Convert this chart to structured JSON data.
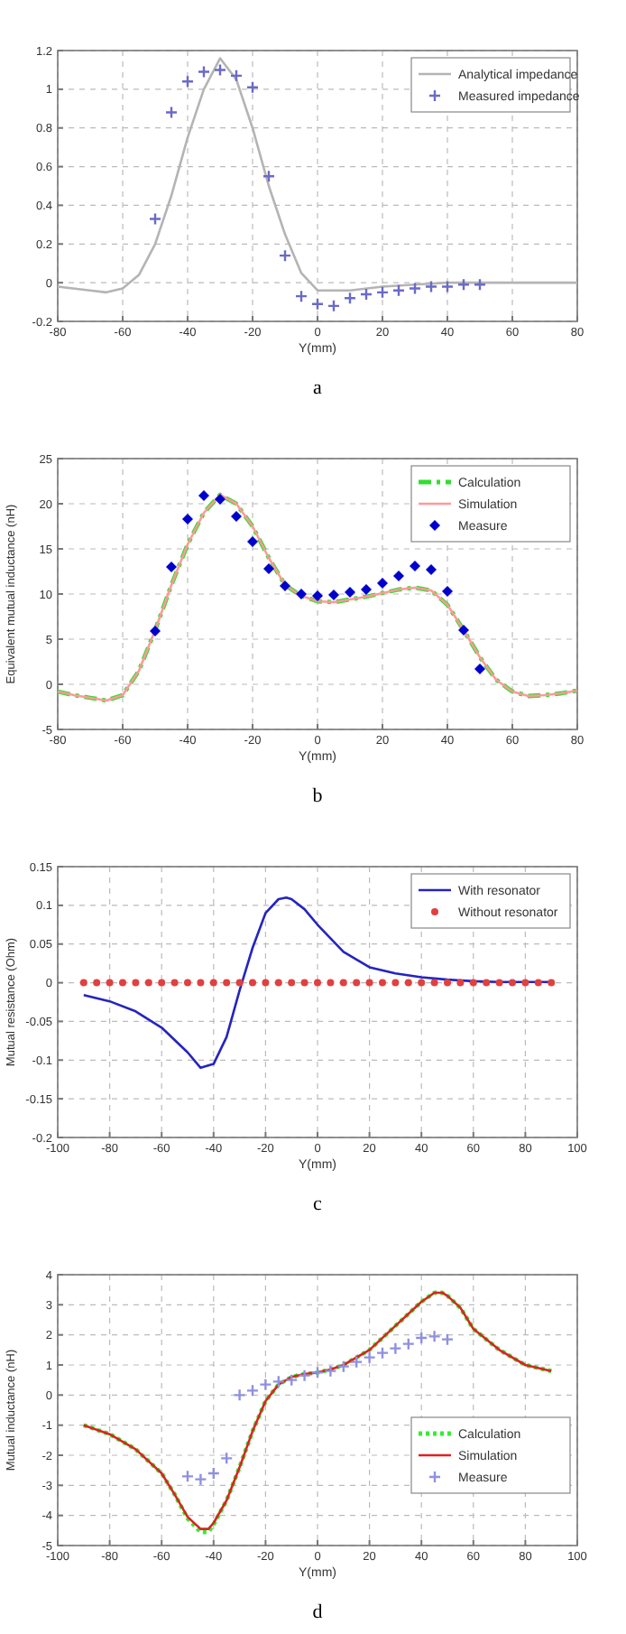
{
  "chart_data": [
    {
      "type": "line",
      "xlabel": "Y(mm)",
      "annotations": [
        "a"
      ],
      "xlim": [
        -80,
        80
      ],
      "xticks": [
        -80,
        -60,
        -40,
        -20,
        0,
        20,
        40,
        60,
        80
      ],
      "ylim": [
        -0.2,
        1.2
      ],
      "yticks": [
        -0.2,
        0,
        0.2,
        0.4,
        0.6,
        0.8,
        1,
        1.2
      ],
      "grid": true,
      "legend": "top right",
      "series": [
        {
          "name": "Analytical impedance",
          "type": "line",
          "color": "#b4b4b4",
          "line_style": "solid",
          "marker": "none",
          "x": [
            -80,
            -70,
            -65,
            -60,
            -55,
            -50,
            -45,
            -40,
            -35,
            -30,
            -25,
            -20,
            -15,
            -10,
            -5,
            0,
            5,
            10,
            20,
            30,
            40,
            50,
            60,
            80
          ],
          "values": [
            -0.02,
            -0.04,
            -0.05,
            -0.03,
            0.04,
            0.2,
            0.45,
            0.75,
            1.0,
            1.16,
            1.05,
            0.8,
            0.5,
            0.25,
            0.05,
            -0.04,
            -0.04,
            -0.04,
            -0.02,
            -0.01,
            0,
            0,
            0,
            0
          ]
        },
        {
          "name": "Measured impedance",
          "type": "scatter",
          "color": "#6a6ac8",
          "marker": "cross",
          "x": [
            -50,
            -45,
            -40,
            -35,
            -30,
            -25,
            -20,
            -15,
            -10,
            -5,
            0,
            5,
            10,
            15,
            20,
            25,
            30,
            35,
            40,
            45,
            50
          ],
          "values": [
            0.33,
            0.88,
            1.04,
            1.09,
            1.1,
            1.07,
            1.01,
            0.55,
            0.14,
            -0.07,
            -0.11,
            -0.12,
            -0.08,
            -0.06,
            -0.05,
            -0.04,
            -0.03,
            -0.02,
            -0.02,
            -0.01,
            -0.01
          ]
        }
      ]
    },
    {
      "type": "line",
      "xlabel": "Y(mm)",
      "ylabel": "Equivalent mutual inductance (nH)",
      "annotations": [
        "b"
      ],
      "xlim": [
        -80,
        80
      ],
      "xticks": [
        -80,
        -60,
        -40,
        -20,
        0,
        20,
        40,
        60,
        80
      ],
      "ylim": [
        -5,
        25
      ],
      "yticks": [
        -5,
        0,
        5,
        10,
        15,
        20,
        25
      ],
      "grid": true,
      "legend": "top right",
      "series": [
        {
          "name": "Calculation",
          "type": "line",
          "color": "#33dd33",
          "line_style": "dashed",
          "marker": "none",
          "x": [
            -80,
            -75,
            -70,
            -65,
            -60,
            -55,
            -50,
            -45,
            -40,
            -35,
            -30,
            -25,
            -20,
            -15,
            -10,
            -5,
            0,
            5,
            10,
            15,
            20,
            25,
            30,
            35,
            40,
            45,
            50,
            55,
            60,
            65,
            70,
            75,
            80
          ],
          "values": [
            -0.8,
            -1.2,
            -1.5,
            -1.8,
            -1.2,
            1.5,
            6,
            11,
            15.5,
            19,
            21,
            20,
            17.5,
            14,
            11,
            9.8,
            9.2,
            9.1,
            9.4,
            9.7,
            10.1,
            10.5,
            10.7,
            10.4,
            8.8,
            6,
            3,
            0.5,
            -0.8,
            -1.3,
            -1.2,
            -1,
            -0.7
          ]
        },
        {
          "name": "Simulation",
          "type": "line",
          "color": "#ff9999",
          "line_style": "solid",
          "marker": "none",
          "x": [
            -80,
            -75,
            -70,
            -65,
            -60,
            -55,
            -50,
            -45,
            -40,
            -35,
            -30,
            -25,
            -20,
            -15,
            -10,
            -5,
            0,
            5,
            10,
            15,
            20,
            25,
            30,
            35,
            40,
            45,
            50,
            55,
            60,
            65,
            70,
            75,
            80
          ],
          "values": [
            -0.8,
            -1.2,
            -1.5,
            -1.8,
            -1.2,
            1.5,
            6,
            11,
            15.5,
            19,
            21,
            20,
            17.5,
            14,
            11,
            9.8,
            9.2,
            9.1,
            9.4,
            9.7,
            10.1,
            10.5,
            10.7,
            10.4,
            8.8,
            6,
            3,
            0.5,
            -0.8,
            -1.3,
            -1.2,
            -1,
            -0.7
          ]
        },
        {
          "name": "Measure",
          "type": "scatter",
          "color": "#0000cc",
          "marker": "diamond",
          "x": [
            -50,
            -45,
            -40,
            -35,
            -30,
            -25,
            -20,
            -15,
            -10,
            -5,
            0,
            5,
            10,
            15,
            20,
            25,
            30,
            35,
            40,
            45,
            50
          ],
          "values": [
            5.9,
            13,
            18.3,
            20.9,
            20.5,
            18.6,
            15.8,
            12.8,
            10.9,
            10,
            9.8,
            9.9,
            10.2,
            10.5,
            11.2,
            12,
            13.1,
            12.7,
            10.3,
            6,
            1.7
          ]
        }
      ]
    },
    {
      "type": "line",
      "xlabel": "Y(mm)",
      "ylabel": "Mutual resistance (Ohm)",
      "annotations": [
        "c"
      ],
      "xlim": [
        -100,
        100
      ],
      "xticks": [
        -100,
        -80,
        -60,
        -40,
        -20,
        0,
        20,
        40,
        60,
        80,
        100
      ],
      "ylim": [
        -0.2,
        0.15
      ],
      "yticks": [
        -0.2,
        -0.15,
        -0.1,
        -0.05,
        0,
        0.05,
        0.1,
        0.15
      ],
      "grid": true,
      "legend": "top right",
      "series": [
        {
          "name": "With resonator",
          "type": "line",
          "color": "#2424c0",
          "line_style": "solid",
          "marker": "none",
          "x": [
            -90,
            -80,
            -70,
            -60,
            -50,
            -45,
            -40,
            -35,
            -30,
            -25,
            -20,
            -15,
            -12,
            -10,
            -5,
            0,
            10,
            20,
            30,
            40,
            50,
            60,
            70,
            80,
            90
          ],
          "values": [
            -0.016,
            -0.024,
            -0.037,
            -0.058,
            -0.09,
            -0.11,
            -0.105,
            -0.07,
            -0.01,
            0.045,
            0.09,
            0.108,
            0.11,
            0.108,
            0.095,
            0.075,
            0.04,
            0.02,
            0.012,
            0.007,
            0.004,
            0.002,
            0.001,
            0.001,
            0.001
          ]
        },
        {
          "name": "Without resonator",
          "type": "scatter",
          "color": "#e04040",
          "marker": "circle",
          "x": [
            -90,
            -85,
            -80,
            -75,
            -70,
            -65,
            -60,
            -55,
            -50,
            -45,
            -40,
            -35,
            -30,
            -25,
            -20,
            -15,
            -10,
            -5,
            0,
            5,
            10,
            15,
            20,
            25,
            30,
            35,
            40,
            45,
            50,
            55,
            60,
            65,
            70,
            75,
            80,
            85,
            90
          ],
          "values": [
            0,
            0,
            0,
            0,
            0,
            0,
            0,
            0,
            0,
            0,
            0,
            0,
            0,
            0,
            0,
            0,
            0,
            0,
            0,
            0,
            0,
            0,
            0,
            0,
            0,
            0,
            0,
            0,
            0,
            0,
            0,
            0,
            0,
            0,
            0,
            0,
            0
          ]
        }
      ]
    },
    {
      "type": "line",
      "xlabel": "Y(mm)",
      "ylabel": "Mutual inductance (nH)",
      "annotations": [
        "d"
      ],
      "xlim": [
        -100,
        100
      ],
      "xticks": [
        -100,
        -80,
        -60,
        -40,
        -20,
        0,
        20,
        40,
        60,
        80,
        100
      ],
      "ylim": [
        -5,
        4
      ],
      "yticks": [
        -5,
        -4,
        -3,
        -2,
        -1,
        0,
        1,
        2,
        3,
        4
      ],
      "grid": true,
      "legend": "right",
      "series": [
        {
          "name": "Calculation",
          "type": "line",
          "color": "#33ee33",
          "line_style": "dotted",
          "marker": "none",
          "x": [
            -90,
            -80,
            -70,
            -60,
            -55,
            -50,
            -45,
            -42,
            -40,
            -35,
            -30,
            -25,
            -20,
            -15,
            -10,
            -5,
            0,
            5,
            10,
            20,
            30,
            40,
            45,
            48,
            50,
            55,
            60,
            70,
            80,
            90
          ],
          "values": [
            -1,
            -1.3,
            -1.8,
            -2.6,
            -3.3,
            -4.1,
            -4.55,
            -4.55,
            -4.3,
            -3.5,
            -2.4,
            -1.2,
            -0.2,
            0.35,
            0.6,
            0.7,
            0.75,
            0.85,
            1,
            1.5,
            2.3,
            3.1,
            3.4,
            3.4,
            3.3,
            2.9,
            2.2,
            1.5,
            1,
            0.8
          ]
        },
        {
          "name": "Simulation",
          "type": "line",
          "color": "#dd2222",
          "line_style": "solid",
          "marker": "none",
          "x": [
            -90,
            -80,
            -70,
            -60,
            -55,
            -50,
            -45,
            -42,
            -40,
            -35,
            -30,
            -25,
            -20,
            -15,
            -10,
            -5,
            0,
            5,
            10,
            20,
            30,
            40,
            45,
            48,
            50,
            55,
            60,
            70,
            80,
            90
          ],
          "values": [
            -1,
            -1.3,
            -1.8,
            -2.6,
            -3.3,
            -4.05,
            -4.45,
            -4.45,
            -4.25,
            -3.5,
            -2.4,
            -1.2,
            -0.2,
            0.35,
            0.6,
            0.7,
            0.75,
            0.85,
            1,
            1.5,
            2.3,
            3.1,
            3.4,
            3.4,
            3.3,
            2.9,
            2.2,
            1.5,
            1,
            0.8
          ]
        },
        {
          "name": "Measure",
          "type": "scatter",
          "color": "#9090e0",
          "marker": "cross",
          "x": [
            -50,
            -45,
            -40,
            -35,
            -30,
            -25,
            -20,
            -15,
            -10,
            -5,
            0,
            5,
            10,
            15,
            20,
            25,
            30,
            35,
            40,
            45,
            50
          ],
          "values": [
            -2.7,
            -2.8,
            -2.6,
            -2.1,
            0,
            0.15,
            0.35,
            0.45,
            0.5,
            0.65,
            0.75,
            0.8,
            0.95,
            1.1,
            1.25,
            1.4,
            1.55,
            1.7,
            1.9,
            1.95,
            1.85
          ]
        }
      ]
    }
  ]
}
